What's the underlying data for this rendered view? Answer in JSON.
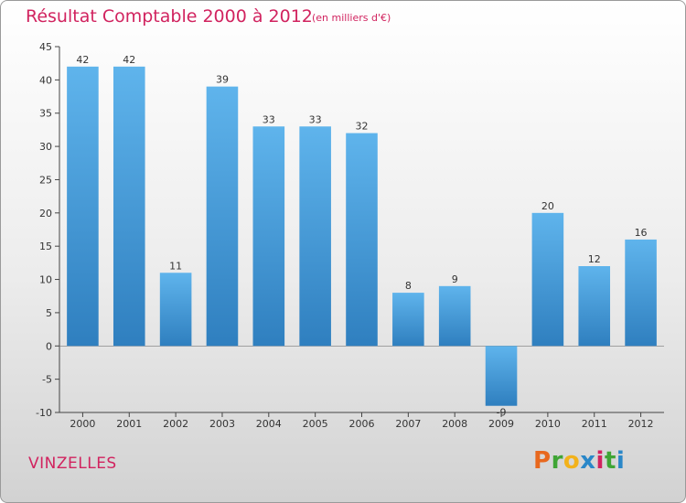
{
  "header": {
    "title": "Résultat Comptable 2000 à 2012",
    "subtitle": "(en milliers d'€)"
  },
  "commune": "VINZELLES",
  "logo": {
    "letters": [
      "P",
      "r",
      "o",
      "x",
      "i",
      "t",
      "i"
    ],
    "colors": [
      "#e8681e",
      "#3fa535",
      "#f2b21b",
      "#2a87c8",
      "#d1235f",
      "#3fa535",
      "#2a87c8"
    ]
  },
  "chart_data": {
    "type": "bar",
    "title": "Résultat Comptable 2000 à 2012",
    "subtitle": "(en milliers d'€)",
    "categories": [
      "2000",
      "2001",
      "2002",
      "2003",
      "2004",
      "2005",
      "2006",
      "2007",
      "2008",
      "2009",
      "2010",
      "2011",
      "2012"
    ],
    "values": [
      42,
      42,
      11,
      39,
      33,
      33,
      32,
      8,
      9,
      -9,
      20,
      12,
      16
    ],
    "value_labels": [
      "42",
      "42",
      "11",
      "39",
      "33",
      "33",
      "32",
      "8",
      "9",
      "-9",
      "20",
      "12",
      "16"
    ],
    "ylim": [
      -10,
      45
    ],
    "yticks": [
      "-10",
      "-5",
      "0",
      "5",
      "10",
      "15",
      "20",
      "25",
      "30",
      "35",
      "40",
      "45"
    ],
    "grid": false,
    "bar_color": "#4d9fe0",
    "xlabel": "",
    "ylabel": ""
  }
}
